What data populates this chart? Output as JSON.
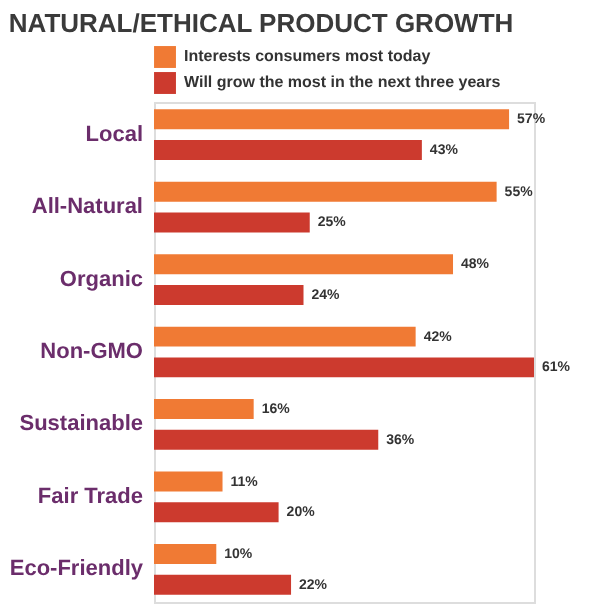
{
  "chart_data": {
    "type": "bar",
    "orientation": "horizontal",
    "title": "NATURAL/ETHICAL PRODUCT GROWTH",
    "categories": [
      "Local",
      "All-Natural",
      "Organic",
      "Non-GMO",
      "Sustainable",
      "Fair Trade",
      "Eco-Friendly"
    ],
    "series": [
      {
        "name": "Interests consumers most today",
        "color": "#f07a34",
        "values": [
          57,
          55,
          48,
          42,
          16,
          11,
          10
        ],
        "value_labels": [
          "57%",
          "55%",
          "48%",
          "42%",
          "16%",
          "11%",
          "10%"
        ]
      },
      {
        "name": "Will grow the most in the next three years",
        "color": "#cc3a2e",
        "values": [
          43,
          25,
          24,
          61,
          36,
          20,
          22
        ],
        "value_labels": [
          "43%",
          "25%",
          "24%",
          "61%",
          "36%",
          "20%",
          "22%"
        ]
      }
    ],
    "legend": "top left",
    "grid": false
  }
}
